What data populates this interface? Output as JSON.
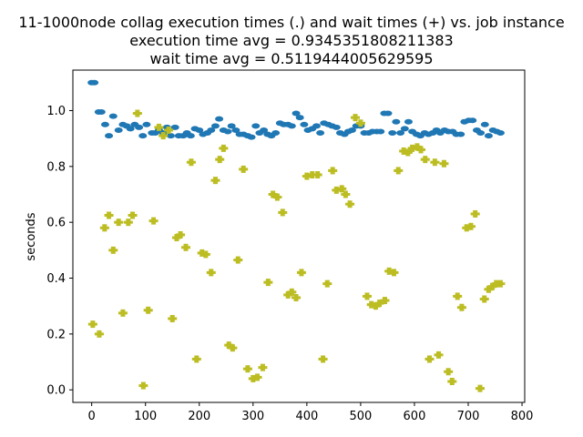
{
  "chart_data": {
    "type": "scatter",
    "title": [
      "11-1000node collag execution times (.) and wait times (+) vs. job instance",
      "execution time avg = 0.9345351808211383",
      "wait time avg = 0.5119444005629595"
    ],
    "xlabel": "",
    "ylabel": "seconds",
    "xlim": [
      -35,
      805
    ],
    "ylim": [
      -0.045,
      1.145
    ],
    "xticks": [
      0,
      100,
      200,
      300,
      400,
      500,
      600,
      700,
      800
    ],
    "yticks": [
      0.0,
      0.2,
      0.4,
      0.6,
      0.8,
      1.0
    ],
    "grid": false,
    "series": [
      {
        "marker": "dot",
        "color": "#1f77b4",
        "points": [
          [
            0,
            1.1
          ],
          [
            5,
            1.1
          ],
          [
            13,
            0.995
          ],
          [
            18,
            0.995
          ],
          [
            25,
            0.95
          ],
          [
            32,
            0.91
          ],
          [
            40,
            0.98
          ],
          [
            50,
            0.93
          ],
          [
            58,
            0.95
          ],
          [
            65,
            0.945
          ],
          [
            72,
            0.935
          ],
          [
            80,
            0.95
          ],
          [
            88,
            0.94
          ],
          [
            95,
            0.91
          ],
          [
            102,
            0.95
          ],
          [
            112,
            0.92
          ],
          [
            118,
            0.92
          ],
          [
            125,
            0.93
          ],
          [
            133,
            0.92
          ],
          [
            140,
            0.94
          ],
          [
            147,
            0.91
          ],
          [
            155,
            0.94
          ],
          [
            162,
            0.91
          ],
          [
            170,
            0.91
          ],
          [
            177,
            0.92
          ],
          [
            184,
            0.91
          ],
          [
            192,
            0.935
          ],
          [
            200,
            0.93
          ],
          [
            207,
            0.915
          ],
          [
            215,
            0.92
          ],
          [
            222,
            0.93
          ],
          [
            230,
            0.945
          ],
          [
            237,
            0.97
          ],
          [
            245,
            0.93
          ],
          [
            253,
            0.925
          ],
          [
            260,
            0.945
          ],
          [
            268,
            0.93
          ],
          [
            275,
            0.915
          ],
          [
            282,
            0.915
          ],
          [
            290,
            0.91
          ],
          [
            297,
            0.905
          ],
          [
            305,
            0.945
          ],
          [
            312,
            0.92
          ],
          [
            320,
            0.93
          ],
          [
            327,
            0.915
          ],
          [
            334,
            0.91
          ],
          [
            342,
            0.92
          ],
          [
            350,
            0.955
          ],
          [
            357,
            0.95
          ],
          [
            365,
            0.95
          ],
          [
            372,
            0.945
          ],
          [
            380,
            0.99
          ],
          [
            387,
            0.975
          ],
          [
            395,
            0.95
          ],
          [
            402,
            0.93
          ],
          [
            410,
            0.935
          ],
          [
            418,
            0.945
          ],
          [
            425,
            0.92
          ],
          [
            432,
            0.955
          ],
          [
            440,
            0.95
          ],
          [
            447,
            0.945
          ],
          [
            455,
            0.94
          ],
          [
            462,
            0.92
          ],
          [
            470,
            0.915
          ],
          [
            477,
            0.925
          ],
          [
            484,
            0.93
          ],
          [
            492,
            0.945
          ],
          [
            500,
            0.945
          ],
          [
            507,
            0.92
          ],
          [
            515,
            0.92
          ],
          [
            522,
            0.925
          ],
          [
            530,
            0.925
          ],
          [
            537,
            0.925
          ],
          [
            544,
            0.99
          ],
          [
            551,
            0.99
          ],
          [
            559,
            0.92
          ],
          [
            566,
            0.96
          ],
          [
            574,
            0.92
          ],
          [
            582,
            0.935
          ],
          [
            589,
            0.96
          ],
          [
            596,
            0.925
          ],
          [
            604,
            0.915
          ],
          [
            611,
            0.91
          ],
          [
            619,
            0.92
          ],
          [
            626,
            0.915
          ],
          [
            634,
            0.92
          ],
          [
            641,
            0.93
          ],
          [
            648,
            0.92
          ],
          [
            656,
            0.93
          ],
          [
            663,
            0.925
          ],
          [
            671,
            0.925
          ],
          [
            678,
            0.915
          ],
          [
            686,
            0.915
          ],
          [
            693,
            0.96
          ],
          [
            701,
            0.965
          ],
          [
            708,
            0.965
          ],
          [
            716,
            0.93
          ],
          [
            723,
            0.92
          ],
          [
            731,
            0.95
          ],
          [
            738,
            0.91
          ],
          [
            746,
            0.93
          ],
          [
            753,
            0.925
          ],
          [
            760,
            0.92
          ]
        ]
      },
      {
        "marker": "plus",
        "color": "#bcbd22",
        "points": [
          [
            2,
            0.235
          ],
          [
            14,
            0.2
          ],
          [
            24,
            0.58
          ],
          [
            32,
            0.625
          ],
          [
            40,
            0.5
          ],
          [
            50,
            0.6
          ],
          [
            58,
            0.275
          ],
          [
            68,
            0.6
          ],
          [
            76,
            0.625
          ],
          [
            85,
            0.99
          ],
          [
            96,
            0.015
          ],
          [
            105,
            0.285
          ],
          [
            115,
            0.605
          ],
          [
            125,
            0.94
          ],
          [
            133,
            0.91
          ],
          [
            143,
            0.93
          ],
          [
            150,
            0.255
          ],
          [
            158,
            0.545
          ],
          [
            165,
            0.555
          ],
          [
            175,
            0.51
          ],
          [
            185,
            0.815
          ],
          [
            195,
            0.11
          ],
          [
            205,
            0.49
          ],
          [
            212,
            0.485
          ],
          [
            222,
            0.42
          ],
          [
            230,
            0.75
          ],
          [
            238,
            0.825
          ],
          [
            245,
            0.865
          ],
          [
            255,
            0.16
          ],
          [
            262,
            0.15
          ],
          [
            272,
            0.465
          ],
          [
            282,
            0.79
          ],
          [
            290,
            0.075
          ],
          [
            300,
            0.04
          ],
          [
            308,
            0.045
          ],
          [
            318,
            0.08
          ],
          [
            328,
            0.385
          ],
          [
            337,
            0.7
          ],
          [
            345,
            0.69
          ],
          [
            355,
            0.635
          ],
          [
            365,
            0.34
          ],
          [
            372,
            0.35
          ],
          [
            380,
            0.33
          ],
          [
            390,
            0.42
          ],
          [
            400,
            0.765
          ],
          [
            410,
            0.77
          ],
          [
            420,
            0.77
          ],
          [
            430,
            0.11
          ],
          [
            438,
            0.38
          ],
          [
            448,
            0.785
          ],
          [
            455,
            0.715
          ],
          [
            465,
            0.72
          ],
          [
            472,
            0.7
          ],
          [
            480,
            0.665
          ],
          [
            490,
            0.975
          ],
          [
            500,
            0.955
          ],
          [
            512,
            0.335
          ],
          [
            520,
            0.305
          ],
          [
            528,
            0.3
          ],
          [
            535,
            0.31
          ],
          [
            545,
            0.32
          ],
          [
            553,
            0.425
          ],
          [
            562,
            0.42
          ],
          [
            570,
            0.785
          ],
          [
            580,
            0.855
          ],
          [
            588,
            0.85
          ],
          [
            596,
            0.865
          ],
          [
            605,
            0.87
          ],
          [
            612,
            0.86
          ],
          [
            620,
            0.825
          ],
          [
            628,
            0.11
          ],
          [
            638,
            0.815
          ],
          [
            645,
            0.125
          ],
          [
            655,
            0.81
          ],
          [
            663,
            0.065
          ],
          [
            670,
            0.03
          ],
          [
            680,
            0.335
          ],
          [
            688,
            0.295
          ],
          [
            697,
            0.58
          ],
          [
            705,
            0.585
          ],
          [
            713,
            0.63
          ],
          [
            722,
            0.005
          ],
          [
            730,
            0.325
          ],
          [
            738,
            0.36
          ],
          [
            745,
            0.37
          ],
          [
            752,
            0.38
          ],
          [
            760,
            0.38
          ]
        ]
      }
    ]
  }
}
